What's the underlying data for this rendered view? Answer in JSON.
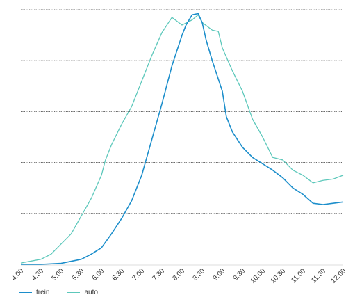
{
  "chart_data": {
    "type": "line",
    "title": "",
    "xlabel": "",
    "ylabel": "",
    "x_ticks": [
      "4:00",
      "4:30",
      "5:00",
      "5:30",
      "6:00",
      "6:30",
      "7:00",
      "7:30",
      "8:00",
      "8:30",
      "9:00",
      "9:30",
      "10:00",
      "10:30",
      "11:00",
      "11:30",
      "12:00"
    ],
    "xlim": [
      4.0,
      12.0
    ],
    "ylim": [
      0,
      100
    ],
    "y_gridlines": [
      20,
      40,
      60,
      80,
      100
    ],
    "grid": "horizontal dotted",
    "legend_position": "bottom-left",
    "series": [
      {
        "name": "trein",
        "color": "#1c8ecb",
        "points": [
          [
            4.0,
            0
          ],
          [
            4.5,
            0
          ],
          [
            5.0,
            0.4
          ],
          [
            5.5,
            2
          ],
          [
            5.75,
            4
          ],
          [
            6.0,
            6.5
          ],
          [
            6.25,
            12
          ],
          [
            6.5,
            18
          ],
          [
            6.75,
            25
          ],
          [
            7.0,
            35
          ],
          [
            7.25,
            49
          ],
          [
            7.5,
            63
          ],
          [
            7.75,
            78
          ],
          [
            8.0,
            90
          ],
          [
            8.1,
            94
          ],
          [
            8.25,
            98
          ],
          [
            8.4,
            98.5
          ],
          [
            8.5,
            95
          ],
          [
            8.6,
            88
          ],
          [
            8.75,
            80
          ],
          [
            9.0,
            68
          ],
          [
            9.1,
            58
          ],
          [
            9.25,
            52
          ],
          [
            9.5,
            46
          ],
          [
            9.75,
            42
          ],
          [
            10.0,
            39.5
          ],
          [
            10.25,
            37
          ],
          [
            10.5,
            34
          ],
          [
            10.75,
            30
          ],
          [
            11.0,
            27.5
          ],
          [
            11.25,
            24
          ],
          [
            11.5,
            23.5
          ],
          [
            11.75,
            24
          ],
          [
            12.0,
            24.5
          ]
        ]
      },
      {
        "name": "auto",
        "color": "#5dc8bb",
        "points": [
          [
            4.0,
            0.5
          ],
          [
            4.5,
            2
          ],
          [
            4.75,
            4
          ],
          [
            5.0,
            8
          ],
          [
            5.25,
            12
          ],
          [
            5.5,
            19
          ],
          [
            5.75,
            26
          ],
          [
            6.0,
            35
          ],
          [
            6.1,
            41
          ],
          [
            6.25,
            47
          ],
          [
            6.5,
            55
          ],
          [
            6.75,
            62
          ],
          [
            7.0,
            72
          ],
          [
            7.25,
            82
          ],
          [
            7.5,
            91
          ],
          [
            7.75,
            97
          ],
          [
            8.0,
            94
          ],
          [
            8.25,
            96
          ],
          [
            8.4,
            98
          ],
          [
            8.5,
            95
          ],
          [
            8.75,
            92
          ],
          [
            8.9,
            91.5
          ],
          [
            9.0,
            85
          ],
          [
            9.25,
            76
          ],
          [
            9.5,
            68
          ],
          [
            9.75,
            57
          ],
          [
            10.0,
            50
          ],
          [
            10.25,
            42
          ],
          [
            10.5,
            41
          ],
          [
            10.75,
            37
          ],
          [
            11.0,
            35
          ],
          [
            11.25,
            32
          ],
          [
            11.5,
            33
          ],
          [
            11.75,
            33.5
          ],
          [
            12.0,
            35
          ]
        ]
      }
    ]
  },
  "legend": {
    "items": [
      {
        "label": "trein",
        "color": "#1c8ecb"
      },
      {
        "label": "auto",
        "color": "#5dc8bb"
      }
    ]
  }
}
